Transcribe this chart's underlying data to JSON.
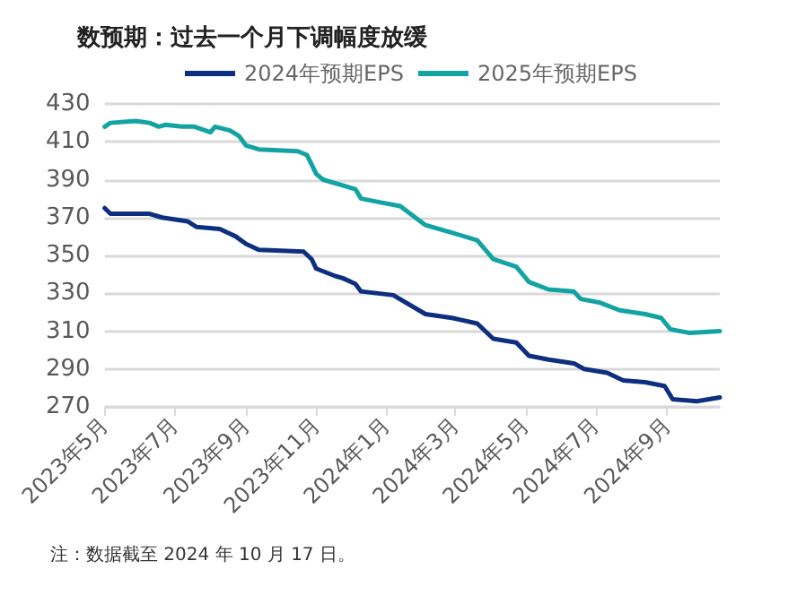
{
  "chart_data": {
    "type": "line",
    "title": "数预期：过去一个月下调幅度放缓",
    "x": [
      "2023-05-01",
      "2023-05-06",
      "2023-05-28",
      "2023-06-09",
      "2023-06-17",
      "2023-06-23",
      "2023-07-07",
      "2023-07-18",
      "2023-08-01",
      "2023-08-05",
      "2023-08-18",
      "2023-08-26",
      "2023-09-01",
      "2023-09-12",
      "2023-10-16",
      "2023-10-24",
      "2023-11-01",
      "2023-11-07",
      "2023-11-24",
      "2023-12-05",
      "2023-12-10",
      "2023-12-27",
      "2024-01-13",
      "2024-02-04",
      "2024-02-27",
      "2024-03-20",
      "2024-04-03",
      "2024-04-23",
      "2024-05-04",
      "2024-05-21",
      "2024-06-12",
      "2024-06-18",
      "2024-07-05",
      "2024-07-22",
      "2024-08-13",
      "2024-08-27",
      "2024-09-04",
      "2024-09-21",
      "2024-10-17"
    ],
    "series": [
      {
        "name": "2024年预期EPS",
        "color": "#0e2f80",
        "x": [
          "2023-05-01",
          "2023-05-06",
          "2023-06-09",
          "2023-06-20",
          "2023-07-12",
          "2023-07-20",
          "2023-08-09",
          "2023-08-23",
          "2023-09-01",
          "2023-09-12",
          "2023-10-21",
          "2023-10-28",
          "2023-11-01",
          "2023-11-18",
          "2023-11-24",
          "2023-12-05",
          "2023-12-10",
          "2024-01-07",
          "2024-02-04",
          "2024-02-27",
          "2024-03-20",
          "2024-04-03",
          "2024-04-23",
          "2024-05-04",
          "2024-05-21",
          "2024-06-12",
          "2024-06-21",
          "2024-07-11",
          "2024-07-25",
          "2024-08-13",
          "2024-08-30",
          "2024-09-06",
          "2024-09-27",
          "2024-10-17"
        ],
        "values": [
          375,
          372,
          372,
          370,
          368,
          365,
          364,
          360,
          356,
          353,
          352,
          348,
          343,
          339,
          338,
          335,
          331,
          329,
          319,
          317,
          314,
          306,
          304,
          297,
          295,
          293,
          290,
          288,
          284,
          283,
          281,
          274,
          273,
          275
        ]
      },
      {
        "name": "2025年预期EPS",
        "color": "#14a3a3",
        "values": [
          418,
          420,
          421,
          420,
          418,
          419,
          418,
          418,
          415,
          418,
          416,
          413,
          408,
          406,
          405,
          403,
          393,
          390,
          387,
          385,
          380,
          378,
          376,
          366,
          362,
          358,
          348,
          344,
          336,
          332,
          331,
          327,
          325,
          321,
          319,
          317,
          311,
          309,
          310
        ]
      }
    ],
    "xlim": [
      "2023-05-01",
      "2024-10-17"
    ],
    "xticks": [
      {
        "value": "2023-05-01",
        "label": "2023年5月"
      },
      {
        "value": "2023-07-01",
        "label": "2023年7月"
      },
      {
        "value": "2023-09-01",
        "label": "2023年9月"
      },
      {
        "value": "2023-11-01",
        "label": "2023年11月"
      },
      {
        "value": "2024-01-01",
        "label": "2024年1月"
      },
      {
        "value": "2024-03-01",
        "label": "2024年3月"
      },
      {
        "value": "2024-05-01",
        "label": "2024年5月"
      },
      {
        "value": "2024-07-01",
        "label": "2024年7月"
      },
      {
        "value": "2024-09-01",
        "label": "2024年9月"
      }
    ],
    "ylim": [
      270,
      430
    ],
    "yticks": [
      270,
      290,
      310,
      330,
      350,
      370,
      390,
      410,
      430
    ],
    "grid": "y",
    "legend": "top",
    "marker": "none",
    "line_style": "solid",
    "annotations": [
      "注：数据截至 2024 年 10 月 17 日。"
    ]
  }
}
